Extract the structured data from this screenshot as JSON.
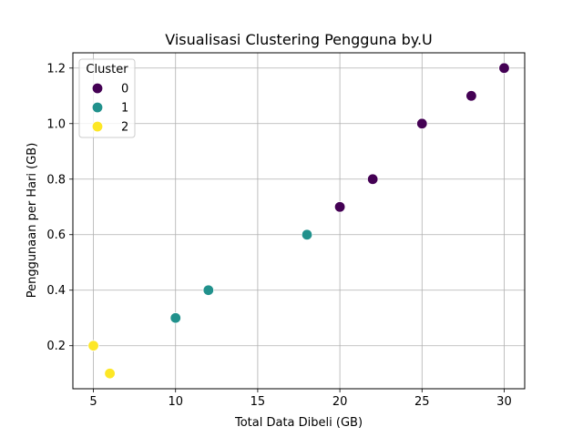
{
  "chart_data": {
    "type": "scatter",
    "title": "Visualisasi Clustering Pengguna by.U",
    "xlabel": "Total Data Dibeli (GB)",
    "ylabel": "Penggunaan per Hari (GB)",
    "xlim": [
      3.75,
      31.25
    ],
    "ylim": [
      0.045,
      1.255
    ],
    "xticks": [
      5,
      10,
      15,
      20,
      25,
      30
    ],
    "yticks": [
      0.2,
      0.4,
      0.6,
      0.8,
      1.0,
      1.2
    ],
    "ytick_labels": [
      "0.2",
      "0.4",
      "0.6",
      "0.8",
      "1.0",
      "1.2"
    ],
    "grid": true,
    "legend": {
      "title": "Cluster",
      "placement": "top-left"
    },
    "series": [
      {
        "name": "0",
        "color": "#440154",
        "points": [
          [
            20,
            0.7
          ],
          [
            22,
            0.8
          ],
          [
            25,
            1.0
          ],
          [
            28,
            1.1
          ],
          [
            30,
            1.2
          ]
        ]
      },
      {
        "name": "1",
        "color": "#21918c",
        "points": [
          [
            10,
            0.3
          ],
          [
            12,
            0.4
          ],
          [
            18,
            0.6
          ]
        ]
      },
      {
        "name": "2",
        "color": "#fde725",
        "points": [
          [
            5,
            0.2
          ],
          [
            6,
            0.1
          ]
        ]
      }
    ]
  }
}
